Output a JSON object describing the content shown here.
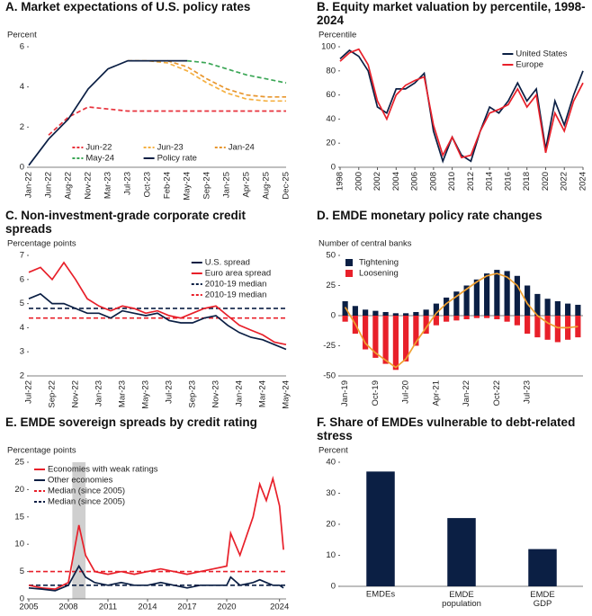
{
  "chart_data": [
    {
      "type": "line",
      "title": "A. Market expectations of U.S. policy rates",
      "ylabel": "Percent",
      "categories": [
        "Jan-22",
        "Jun-22",
        "Aug-22",
        "Nov-22",
        "Mar-23",
        "Jul-23",
        "Oct-23",
        "Feb-24",
        "May-24",
        "Sep-24",
        "Jan-25",
        "Apr-25",
        "Aug-25",
        "Dec-25"
      ],
      "rotate_x_labels": true,
      "ylim": [
        0,
        6
      ],
      "yticks": [
        0,
        2,
        4,
        6
      ],
      "legend": "lower right",
      "legend_columns": 3,
      "series": [
        {
          "name": "Jun-22",
          "color": "#e8323c",
          "dashed": true,
          "values": [
            null,
            1.6,
            2.5,
            3.0,
            2.9,
            2.8,
            2.8,
            2.8,
            2.8,
            2.8,
            2.8,
            2.8,
            2.8,
            2.8
          ]
        },
        {
          "name": "Jun-23",
          "color": "#f5b041",
          "dashed": true,
          "values": [
            null,
            null,
            null,
            null,
            null,
            5.3,
            5.3,
            5.2,
            4.8,
            4.2,
            3.7,
            3.4,
            3.3,
            3.3
          ]
        },
        {
          "name": "Jan-24",
          "color": "#e8962e",
          "dashed": true,
          "values": [
            null,
            null,
            null,
            null,
            null,
            null,
            null,
            5.3,
            5.0,
            4.4,
            3.9,
            3.6,
            3.5,
            3.5
          ]
        },
        {
          "name": "May-24",
          "color": "#3aa655",
          "dashed": true,
          "values": [
            null,
            null,
            null,
            null,
            null,
            null,
            null,
            null,
            5.3,
            5.2,
            4.9,
            4.6,
            4.4,
            4.2
          ]
        },
        {
          "name": "Policy rate",
          "color": "#0b1f44",
          "dashed": false,
          "values": [
            0.1,
            1.4,
            2.4,
            3.9,
            4.9,
            5.3,
            5.3,
            5.3,
            5.3,
            null,
            null,
            null,
            null,
            null
          ]
        }
      ]
    },
    {
      "type": "line",
      "title": "B. Equity market valuation by percentile, 1998-2024",
      "ylabel": "Percentile",
      "x": [
        1998,
        1999,
        2000,
        2001,
        2002,
        2003,
        2004,
        2005,
        2006,
        2007,
        2008,
        2009,
        2010,
        2011,
        2012,
        2013,
        2014,
        2015,
        2016,
        2017,
        2018,
        2019,
        2020,
        2021,
        2022,
        2023,
        2024
      ],
      "xlim": [
        1998,
        2024
      ],
      "xticks": [
        1998,
        2000,
        2002,
        2004,
        2006,
        2008,
        2010,
        2012,
        2014,
        2016,
        2018,
        2020,
        2022,
        2024
      ],
      "rotate_x_labels": true,
      "ylim": [
        0,
        100
      ],
      "yticks": [
        0,
        20,
        40,
        60,
        80,
        100
      ],
      "legend": "upper right",
      "legend_columns": 1,
      "series": [
        {
          "name": "United States",
          "color": "#0b1f44",
          "values": [
            90,
            97,
            92,
            80,
            50,
            45,
            65,
            65,
            70,
            78,
            30,
            5,
            25,
            10,
            5,
            30,
            50,
            45,
            55,
            70,
            55,
            65,
            15,
            55,
            35,
            60,
            80
          ]
        },
        {
          "name": "Europe",
          "color": "#e8202a",
          "values": [
            88,
            95,
            98,
            85,
            55,
            40,
            60,
            68,
            72,
            75,
            35,
            10,
            25,
            8,
            10,
            30,
            45,
            48,
            52,
            65,
            50,
            60,
            12,
            45,
            30,
            55,
            70
          ]
        }
      ]
    },
    {
      "type": "line",
      "title": "C. Non-investment-grade corporate credit spreads",
      "ylabel": "Percentage points",
      "categories": [
        "Jul-22",
        null,
        "Sep-22",
        null,
        "Nov-22",
        null,
        "Jan-23",
        null,
        "Mar-23",
        null,
        "May-23",
        null,
        "Jul-23",
        null,
        "Sep-23",
        null,
        "Nov-23",
        null,
        "Jan-24",
        null,
        "Mar-24",
        null,
        "May-24"
      ],
      "rotate_x_labels": true,
      "ylim": [
        2,
        7
      ],
      "yticks": [
        2,
        3,
        4,
        5,
        6,
        7
      ],
      "legend": "upper right",
      "legend_columns": 1,
      "series": [
        {
          "name": "U.S. spread",
          "color": "#0b1f44",
          "values": [
            5.2,
            5.4,
            5.0,
            5.0,
            4.8,
            4.6,
            4.6,
            4.4,
            4.7,
            4.6,
            4.5,
            4.6,
            4.3,
            4.2,
            4.2,
            4.4,
            4.5,
            4.1,
            3.8,
            3.6,
            3.5,
            3.3,
            3.1
          ]
        },
        {
          "name": "Euro area spread",
          "color": "#e8202a",
          "values": [
            6.3,
            6.5,
            6.0,
            6.7,
            6.0,
            5.2,
            4.9,
            4.7,
            4.9,
            4.8,
            4.6,
            4.7,
            4.5,
            4.4,
            4.6,
            4.8,
            4.9,
            4.5,
            4.1,
            3.9,
            3.7,
            3.4,
            3.3
          ]
        }
      ],
      "hlines": [
        {
          "name": "2010-19 median",
          "color": "#0b1f44",
          "value": 4.8
        },
        {
          "name": "2010-19 median",
          "color": "#e8202a",
          "value": 4.4
        }
      ]
    },
    {
      "type": "bar",
      "title": "D. EMDE monetary policy rate changes",
      "ylabel": "Number of central banks",
      "categories": [
        "Jan-19",
        null,
        null,
        "Oct-19",
        null,
        null,
        "Jul-20",
        null,
        null,
        "Apr-21",
        null,
        null,
        "Jan-22",
        null,
        null,
        "Oct-22",
        null,
        null,
        "Jul-23",
        null,
        null,
        null,
        null,
        null
      ],
      "rotate_x_labels": true,
      "ylim": [
        -50,
        50
      ],
      "yticks": [
        -50,
        -25,
        0,
        25,
        50
      ],
      "legend": "upper left",
      "legend_columns": 1,
      "series": [
        {
          "name": "Tightening",
          "color": "#0b1f44",
          "values": [
            12,
            8,
            5,
            4,
            3,
            2,
            2,
            3,
            5,
            10,
            15,
            20,
            25,
            30,
            35,
            38,
            37,
            33,
            25,
            18,
            14,
            12,
            10,
            9
          ]
        },
        {
          "name": "Loosening",
          "color": "#e8202a",
          "values": [
            -5,
            -15,
            -28,
            -35,
            -40,
            -45,
            -38,
            -25,
            -15,
            -8,
            -5,
            -4,
            -3,
            -2,
            -2,
            -3,
            -5,
            -8,
            -15,
            -18,
            -20,
            -22,
            -20,
            -18
          ]
        },
        {
          "color": "#f0a030",
          "mark": "line",
          "values": [
            7,
            -7,
            -23,
            -31,
            -37,
            -43,
            -36,
            -22,
            -10,
            2,
            10,
            16,
            22,
            28,
            33,
            35,
            32,
            25,
            10,
            0,
            -6,
            -10,
            -10,
            -9
          ]
        }
      ]
    },
    {
      "type": "line",
      "title": "E. EMDE sovereign spreads by credit rating",
      "ylabel": "Percentage points",
      "x": [
        2005,
        2006,
        2007,
        2008,
        2008.8,
        2009.3,
        2010,
        2011,
        2012,
        2013,
        2014,
        2015,
        2016,
        2017,
        2018,
        2019,
        2020,
        2020.3,
        2021,
        2022,
        2022.5,
        2023,
        2023.5,
        2024,
        2024.3
      ],
      "xlim": [
        2005,
        2024.5
      ],
      "xticks": [
        2005,
        2008,
        2011,
        2014,
        2017,
        2020,
        2024
      ],
      "shade": [
        2008.3,
        2009.3
      ],
      "ylim": [
        0,
        25
      ],
      "yticks": [
        0,
        5,
        10,
        15,
        20,
        25
      ],
      "legend": "upper left",
      "legend_columns": 1,
      "series": [
        {
          "name": "Economies with weak ratings",
          "color": "#e8202a",
          "values": [
            2.5,
            2,
            1.8,
            3,
            13.5,
            8,
            5,
            4.5,
            5,
            4.5,
            5,
            5.5,
            5,
            4.5,
            5,
            5.5,
            6,
            12,
            8,
            15,
            21,
            18,
            22,
            17,
            9
          ]
        },
        {
          "name": "Other economies",
          "color": "#0b1f44",
          "values": [
            2,
            1.8,
            1.5,
            2.5,
            6,
            4,
            3,
            2.5,
            3,
            2.5,
            2.5,
            3,
            2.5,
            2,
            2.5,
            2.5,
            2.5,
            4,
            2.5,
            3,
            3.5,
            3,
            2.5,
            2.5,
            2
          ]
        }
      ],
      "hlines": [
        {
          "name": "Median (since 2005)",
          "color": "#e8202a",
          "value": 5
        },
        {
          "name": "Median (since 2005)",
          "color": "#0b1f44",
          "value": 2.5
        }
      ]
    },
    {
      "type": "bar",
      "title": "F. Share of EMDEs vulnerable to debt-related stress",
      "ylabel": "Percent",
      "categories": [
        "EMDEs",
        "EMDE population",
        "EMDE GDP"
      ],
      "ylim": [
        0,
        40
      ],
      "yticks": [
        0,
        10,
        20,
        30,
        40
      ],
      "series": [
        {
          "color": "#0b1f44",
          "values": [
            37,
            22,
            12
          ]
        }
      ]
    }
  ]
}
